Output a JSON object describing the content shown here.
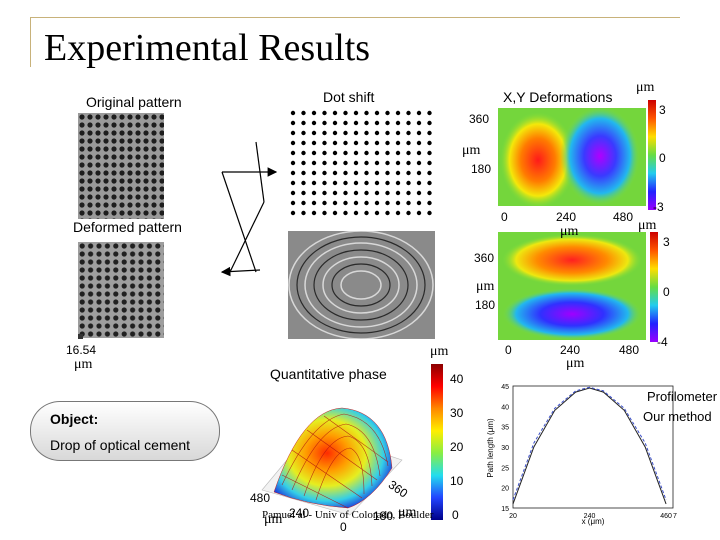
{
  "slide": {
    "title": "Experimental Results",
    "footer": "Pamuel al - Univ of Colorado, Boulder"
  },
  "labels": {
    "original_pattern": "Original pattern",
    "dot_shift": "Dot shift",
    "xy_deformations": "X,Y Deformations",
    "deformed_pattern": "Deformed pattern",
    "quantitative_phase": "Quantitative phase",
    "scale_value": "16.54",
    "unit": "μm"
  },
  "xy_maps": {
    "x_ticks": [
      "0",
      "240",
      "480"
    ],
    "y_ticks": [
      "360",
      "180"
    ],
    "colorbar_top": {
      "max": "3",
      "mid": "0",
      "min": "-3"
    },
    "colorbar_bottom": {
      "max": "3",
      "mid": "0",
      "min": "-4"
    }
  },
  "phase_plot": {
    "colorbar_ticks": [
      "40",
      "30",
      "20",
      "10",
      "0"
    ],
    "axis_ticks": [
      "480",
      "360",
      "240",
      "180",
      "0"
    ]
  },
  "profilometer_chart": {
    "legend": [
      "Profilometer",
      "Our method"
    ],
    "ylabel": "Path length (μm)",
    "xlabel": "x (μm)",
    "y_ticks": [
      "45",
      "40",
      "35",
      "30",
      "25",
      "20",
      "15"
    ],
    "x_ticks": [
      "20",
      "240",
      "460",
      "7"
    ]
  },
  "object_box": {
    "title": "Object:",
    "text": "Drop of optical cement"
  },
  "chart_data": {
    "type": "line",
    "title": "",
    "xlabel": "x (μm)",
    "ylabel": "Path length (μm)",
    "xlim": [
      20,
      480
    ],
    "ylim": [
      15,
      45
    ],
    "series": [
      {
        "name": "Profilometer",
        "x": [
          20,
          80,
          140,
          200,
          240,
          280,
          340,
          400,
          460
        ],
        "y": [
          16,
          30,
          39,
          43.5,
          44.5,
          43.5,
          39,
          30,
          16
        ]
      },
      {
        "name": "Our method",
        "x": [
          20,
          80,
          140,
          200,
          240,
          280,
          340,
          400,
          460
        ],
        "y": [
          17,
          31,
          39.5,
          43.8,
          44.7,
          43.8,
          39.5,
          31,
          17
        ]
      }
    ]
  }
}
